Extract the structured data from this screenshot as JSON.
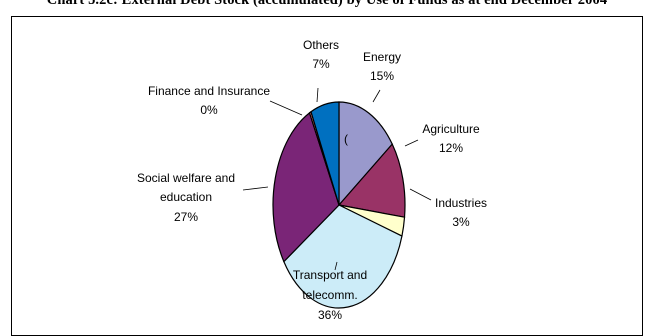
{
  "chart_data": {
    "type": "pie",
    "title": "Chart 5.2c: External Debt Stock (accumulated) by Use of Funds as at end December 2004",
    "start_angle_deg": 0,
    "direction": "clockwise",
    "slices": [
      {
        "label": "Energy",
        "pct_label": "15%",
        "value": 15,
        "color": "#9999cc"
      },
      {
        "label": "Agriculture",
        "pct_label": "12%",
        "value": 12,
        "color": "#993366"
      },
      {
        "label": "Industries",
        "pct_label": "3%",
        "value": 3,
        "color": "#ffffcc"
      },
      {
        "label": "Transport and telecomm.",
        "pct_label": "36%",
        "value": 36,
        "color": "#ccecf8"
      },
      {
        "label": "Social welfare and education",
        "pct_label": "27%",
        "value": 27,
        "color": "#7a2577"
      },
      {
        "label": "Finance and Insurance",
        "pct_label": "0%",
        "value": 0.4,
        "color": "#ff8080"
      },
      {
        "label": "Others",
        "pct_label": "7%",
        "value": 7,
        "color": "#0070c0"
      }
    ],
    "stray_mark": "("
  }
}
